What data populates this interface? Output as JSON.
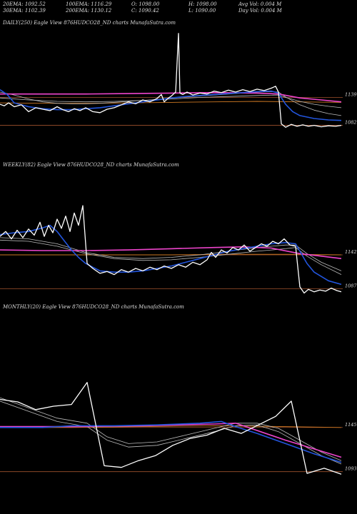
{
  "header": {
    "row1": [
      "20EMA: 1092.52",
      "100EMA: 1116.29",
      "O: 1098.00",
      "H: 1098.00",
      "Avg Vol: 0.004 M"
    ],
    "row2": [
      "30EMA: 1102.39",
      "200EMA: 1130.12",
      "C: 1090.42",
      "L: 1090.00",
      "Day Vol: 0.004 M"
    ]
  },
  "colors": {
    "background": "#000000",
    "price": "#ffffff",
    "ema_fast": "#2255dd",
    "ema_slow": "#ee44cc",
    "ema_grey": "#bbbbbb",
    "ema_orange": "#cc7722",
    "level_line": "#a0522d"
  },
  "chart_data": [
    {
      "type": "line",
      "title": "DAILY(250) Eagle   View  876HUDCO28_ND charts MunafaSutra.com",
      "ylim": [
        1020,
        1280
      ],
      "levels": [
        {
          "value": 1139,
          "label": "1139"
        },
        {
          "value": 1082,
          "label": "1082"
        }
      ],
      "series": [
        {
          "role": "price",
          "x": [
            0,
            6,
            12,
            20,
            30,
            40,
            50,
            60,
            70,
            80,
            88,
            96,
            104,
            112,
            120,
            130,
            140,
            150,
            160,
            170,
            180,
            190,
            200,
            210,
            220,
            226,
            230,
            236,
            240,
            246,
            250,
            252,
            256,
            262,
            270,
            280,
            290,
            300,
            310,
            320,
            330,
            340,
            350,
            360,
            370,
            380,
            386,
            390,
            394,
            400,
            408,
            416,
            424,
            432,
            440,
            450,
            460,
            470,
            478
          ],
          "y": [
            1125,
            1122,
            1128,
            1120,
            1124,
            1110,
            1118,
            1115,
            1112,
            1120,
            1114,
            1110,
            1116,
            1112,
            1118,
            1110,
            1108,
            1115,
            1118,
            1124,
            1130,
            1126,
            1134,
            1130,
            1137,
            1145,
            1130,
            1138,
            1142,
            1150,
            1270,
            1148,
            1145,
            1150,
            1144,
            1148,
            1146,
            1152,
            1149,
            1154,
            1150,
            1155,
            1151,
            1156,
            1153,
            1158,
            1162,
            1150,
            1085,
            1078,
            1084,
            1080,
            1083,
            1080,
            1082,
            1079,
            1081,
            1080,
            1082
          ]
        },
        {
          "role": "ema_fast",
          "x": [
            0,
            10,
            20,
            40,
            60,
            80,
            100,
            120,
            140,
            160,
            180,
            200,
            220,
            240,
            260,
            280,
            300,
            320,
            340,
            360,
            380,
            390,
            400,
            410,
            420,
            440,
            460,
            478
          ],
          "y": [
            1155,
            1145,
            1128,
            1120,
            1116,
            1114,
            1114,
            1116,
            1118,
            1122,
            1126,
            1130,
            1134,
            1138,
            1141,
            1143,
            1145,
            1147,
            1149,
            1151,
            1152,
            1148,
            1125,
            1110,
            1102,
            1096,
            1093,
            1092
          ]
        },
        {
          "role": "ema_grey",
          "x": [
            0,
            20,
            40,
            60,
            80,
            100,
            120,
            140,
            160,
            180,
            200,
            220,
            240,
            260,
            280,
            300,
            320,
            340,
            360,
            380,
            390,
            400,
            420,
            440,
            460,
            478
          ],
          "y": [
            1150,
            1144,
            1136,
            1130,
            1127,
            1126,
            1126,
            1127,
            1129,
            1131,
            1133,
            1135,
            1138,
            1140,
            1142,
            1144,
            1146,
            1148,
            1150,
            1151,
            1150,
            1140,
            1124,
            1113,
            1106,
            1102
          ]
        },
        {
          "role": "ema_grey",
          "x": [
            0,
            40,
            80,
            120,
            160,
            200,
            240,
            280,
            320,
            360,
            390,
            400,
            420,
            440,
            460,
            478
          ],
          "y": [
            1138,
            1134,
            1131,
            1130,
            1131,
            1133,
            1136,
            1139,
            1141,
            1143,
            1144,
            1139,
            1131,
            1125,
            1121,
            1118
          ]
        },
        {
          "role": "ema_orange",
          "x": [
            0,
            60,
            120,
            180,
            240,
            300,
            360,
            420,
            478
          ],
          "y": [
            1128,
            1127,
            1127,
            1128,
            1129,
            1130,
            1131,
            1130,
            1129
          ]
        },
        {
          "role": "ema_slow",
          "x": [
            0,
            60,
            120,
            180,
            240,
            300,
            360,
            390,
            420,
            450,
            478
          ],
          "y": [
            1146,
            1146,
            1146,
            1147,
            1148,
            1149,
            1148,
            1146,
            1138,
            1134,
            1130
          ]
        }
      ]
    },
    {
      "type": "line",
      "title": "WEEKLY(82) Eagle   View  876HUDCO28_ND charts MunafaSutra.com",
      "ylim": [
        1040,
        1280
      ],
      "levels": [
        {
          "value": 1142,
          "label": "1142"
        },
        {
          "value": 1087,
          "label": "1087"
        }
      ],
      "series": [
        {
          "role": "price",
          "x": [
            0,
            8,
            16,
            24,
            32,
            40,
            48,
            56,
            62,
            68,
            74,
            80,
            86,
            92,
            98,
            104,
            110,
            116,
            122,
            130,
            140,
            150,
            160,
            170,
            180,
            190,
            200,
            210,
            220,
            230,
            240,
            250,
            260,
            270,
            280,
            290,
            296,
            302,
            310,
            318,
            326,
            334,
            342,
            350,
            358,
            366,
            374,
            382,
            390,
            398,
            406,
            414,
            420,
            426,
            432,
            440,
            448,
            456,
            464,
            472,
            478
          ],
          "y": [
            1172,
            1180,
            1168,
            1182,
            1170,
            1184,
            1174,
            1195,
            1172,
            1190,
            1178,
            1200,
            1185,
            1205,
            1180,
            1210,
            1190,
            1222,
            1128,
            1120,
            1112,
            1115,
            1110,
            1118,
            1114,
            1120,
            1116,
            1122,
            1118,
            1124,
            1120,
            1126,
            1122,
            1130,
            1126,
            1134,
            1146,
            1138,
            1150,
            1145,
            1154,
            1150,
            1158,
            1148,
            1154,
            1160,
            1156,
            1164,
            1160,
            1168,
            1158,
            1156,
            1090,
            1080,
            1086,
            1082,
            1085,
            1083,
            1088,
            1084,
            1082
          ]
        },
        {
          "role": "ema_fast",
          "x": [
            0,
            20,
            40,
            60,
            70,
            80,
            90,
            100,
            110,
            120,
            130,
            140,
            160,
            180,
            200,
            220,
            240,
            260,
            280,
            300,
            320,
            340,
            360,
            380,
            400,
            414,
            420,
            430,
            440,
            460,
            478
          ],
          "y": [
            1175,
            1178,
            1180,
            1186,
            1190,
            1180,
            1165,
            1150,
            1138,
            1128,
            1122,
            1116,
            1114,
            1114,
            1116,
            1120,
            1124,
            1130,
            1136,
            1142,
            1148,
            1152,
            1156,
            1160,
            1162,
            1160,
            1148,
            1128,
            1114,
            1100,
            1094
          ]
        },
        {
          "role": "ema_grey",
          "x": [
            0,
            40,
            80,
            120,
            160,
            200,
            240,
            280,
            320,
            360,
            400,
            414,
            430,
            450,
            478
          ],
          "y": [
            1170,
            1168,
            1160,
            1146,
            1138,
            1136,
            1138,
            1142,
            1148,
            1154,
            1158,
            1158,
            1144,
            1130,
            1116
          ]
        },
        {
          "role": "ema_grey",
          "x": [
            0,
            40,
            80,
            120,
            160,
            200,
            240,
            280,
            320,
            360,
            400,
            414,
            430,
            450,
            478
          ],
          "y": [
            1166,
            1164,
            1156,
            1144,
            1136,
            1133,
            1134,
            1138,
            1143,
            1148,
            1152,
            1154,
            1140,
            1126,
            1110
          ]
        },
        {
          "role": "ema_orange",
          "x": [
            0,
            80,
            160,
            240,
            320,
            400,
            478
          ],
          "y": [
            1142,
            1142,
            1142,
            1142,
            1143,
            1143,
            1142
          ]
        },
        {
          "role": "ema_slow",
          "x": [
            0,
            60,
            120,
            180,
            240,
            300,
            340,
            380,
            420,
            450,
            478
          ],
          "y": [
            1150,
            1149,
            1149,
            1150,
            1152,
            1154,
            1155,
            1153,
            1144,
            1140,
            1136
          ]
        }
      ]
    },
    {
      "type": "line",
      "title": "MONTHLY(20) Eagle   View  876HUDCO28_ND charts MunafaSutra.com",
      "ylim": [
        1060,
        1280
      ],
      "levels": [
        {
          "value": 1145,
          "label": "1145"
        },
        {
          "value": 1093,
          "label": "1093"
        }
      ],
      "series": [
        {
          "role": "price",
          "x": [
            0,
            25,
            50,
            75,
            100,
            122,
            146,
            170,
            194,
            218,
            242,
            266,
            290,
            314,
            338,
            362,
            386,
            408,
            430,
            454,
            478
          ],
          "y": [
            1178,
            1175,
            1166,
            1170,
            1172,
            1198,
            1100,
            1098,
            1106,
            1112,
            1124,
            1132,
            1136,
            1144,
            1138,
            1148,
            1158,
            1176,
            1091,
            1097,
            1090
          ]
        },
        {
          "role": "ema_fast",
          "x": [
            0,
            60,
            100,
            160,
            220,
            280,
            310,
            330,
            360,
            400,
            440,
            478
          ],
          "y": [
            1145,
            1145,
            1147,
            1147,
            1148,
            1150,
            1152,
            1146,
            1138,
            1126,
            1114,
            1104
          ]
        },
        {
          "role": "ema_grey",
          "x": [
            0,
            40,
            80,
            122,
            150,
            180,
            220,
            260,
            300,
            330,
            360,
            390,
            420,
            450,
            478
          ],
          "y": [
            1180,
            1168,
            1156,
            1150,
            1134,
            1126,
            1128,
            1136,
            1144,
            1150,
            1150,
            1144,
            1130,
            1116,
            1106
          ]
        },
        {
          "role": "ema_grey",
          "x": [
            0,
            40,
            80,
            122,
            150,
            180,
            220,
            260,
            300,
            330,
            360,
            390,
            420,
            450,
            478
          ],
          "y": [
            1176,
            1164,
            1152,
            1146,
            1130,
            1122,
            1124,
            1132,
            1140,
            1147,
            1148,
            1140,
            1126,
            1112,
            1102
          ]
        },
        {
          "role": "ema_orange",
          "x": [
            0,
            100,
            200,
            300,
            400,
            478
          ],
          "y": [
            1145,
            1145,
            1146,
            1147,
            1146,
            1145
          ]
        },
        {
          "role": "ema_slow",
          "x": [
            0,
            100,
            200,
            300,
            330,
            400,
            478
          ],
          "y": [
            1146,
            1146,
            1147,
            1149,
            1150,
            1130,
            1110
          ]
        }
      ]
    }
  ]
}
